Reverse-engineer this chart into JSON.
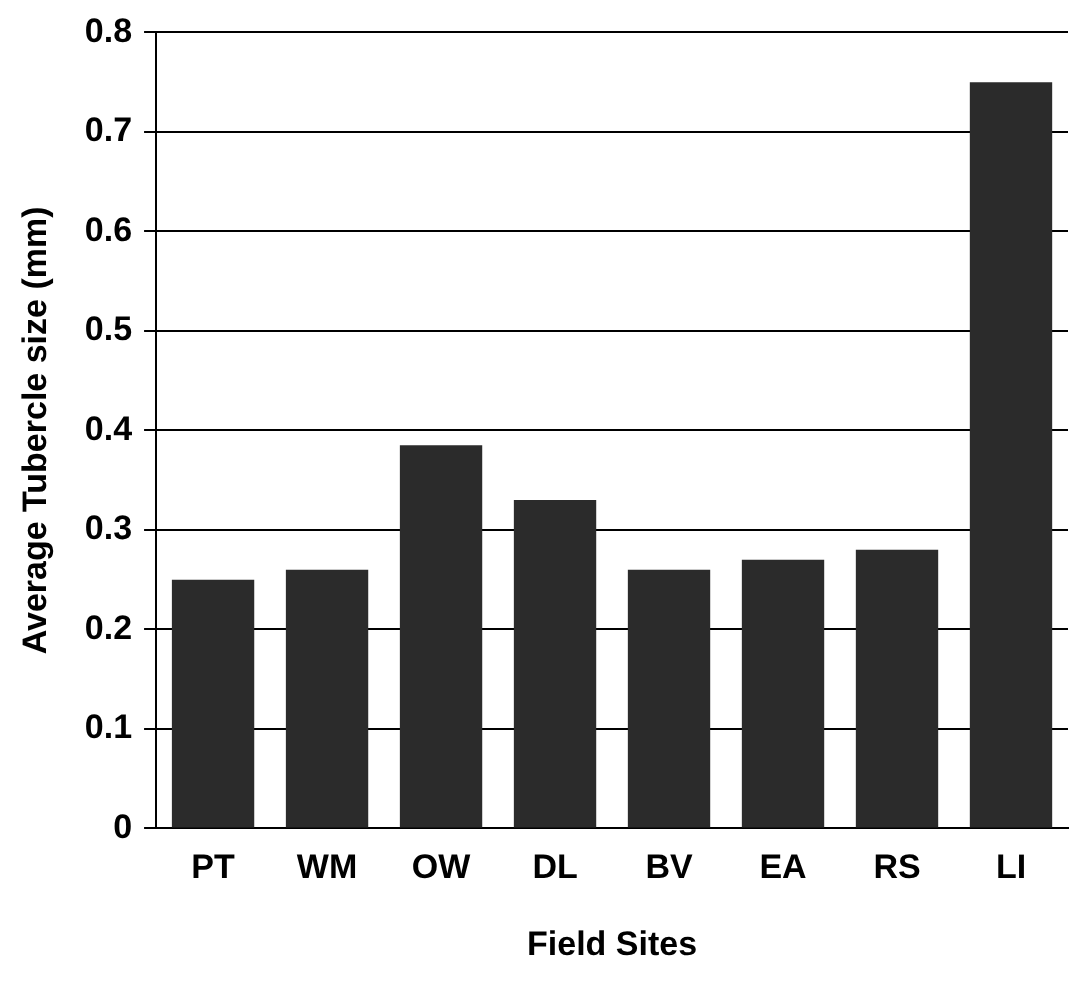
{
  "chart_data": {
    "type": "bar",
    "xlabel": "Field Sites",
    "ylabel": "Average Tubercle size (mm)",
    "categories": [
      "PT",
      "WM",
      "OW",
      "DL",
      "BV",
      "EA",
      "RS",
      "LI"
    ],
    "values": [
      0.25,
      0.26,
      0.385,
      0.33,
      0.26,
      0.27,
      0.28,
      0.75
    ],
    "color": "#2b2b2b",
    "ylim": [
      0,
      0.8
    ],
    "yticks": [
      0,
      0.1,
      0.2,
      0.3,
      0.4,
      0.5,
      0.6,
      0.7,
      0.8
    ],
    "grid": "y"
  }
}
